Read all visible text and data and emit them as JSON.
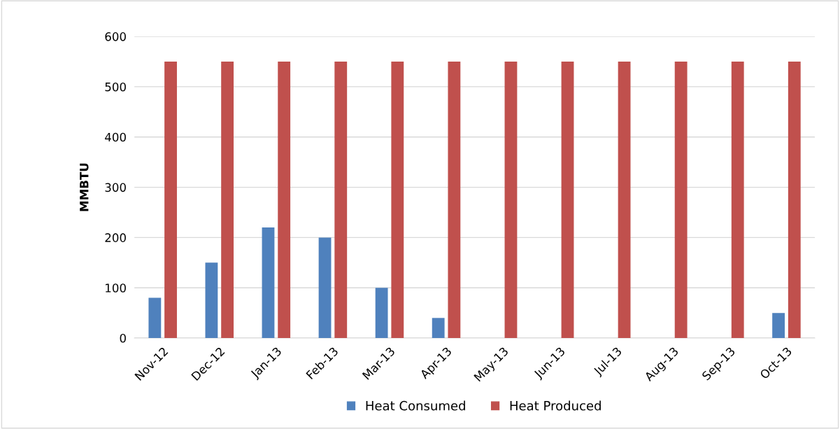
{
  "chart_data": {
    "type": "bar",
    "ylabel": "MMBTU",
    "categories": [
      "Nov-12",
      "Dec-12",
      "Jan-13",
      "Feb-13",
      "Mar-13",
      "Apr-13",
      "May-13",
      "Jun-13",
      "Jul-13",
      "Aug-13",
      "Sep-13",
      "Oct-13"
    ],
    "series": [
      {
        "name": "Heat Consumed",
        "color": "#4f81bd",
        "values": [
          80,
          150,
          220,
          200,
          100,
          40,
          0,
          0,
          0,
          0,
          0,
          50
        ]
      },
      {
        "name": "Heat Produced",
        "color": "#c0504d",
        "values": [
          550,
          550,
          550,
          550,
          550,
          550,
          550,
          550,
          550,
          550,
          550,
          550
        ]
      }
    ],
    "ylim": [
      0,
      600
    ],
    "yticks": [
      0,
      100,
      200,
      300,
      400,
      500,
      600
    ],
    "grid": "y",
    "legend": "bottom"
  }
}
